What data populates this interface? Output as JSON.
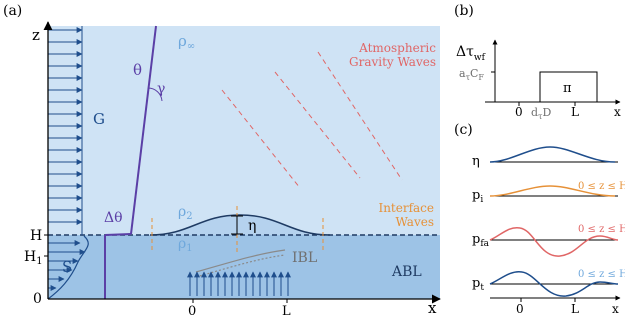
{
  "panel_a": {
    "label": "(a)",
    "axis_z": "z",
    "axis_x": "x",
    "tick_H": "H",
    "tick_H1": "H",
    "tick_H1_sub": "1",
    "tick_0": "0",
    "x_tick_0": "0",
    "x_tick_L": "L",
    "G": "G",
    "S": "S",
    "theta": "θ",
    "gamma": "γ",
    "delta_theta": "Δθ",
    "rho_inf": "ρ",
    "rho_inf_sub": "∞",
    "rho2": "ρ",
    "rho2_sub": "2",
    "rho1": "ρ",
    "rho1_sub": "1",
    "eta": "η",
    "IBL": "IBL",
    "ABL": "ABL",
    "agw_line1": "Atmospheric",
    "agw_line2": "Gravity Waves",
    "iw_line1": "Interface",
    "iw_line2": "Waves"
  },
  "panel_b": {
    "label": "(b)",
    "ylabel_main": "Δτ",
    "ylabel_sub": "wf",
    "level_a": "a",
    "level_a_sub": "τ",
    "level_C": "C",
    "level_C_sub": "F",
    "tick_0": "0",
    "tick_d": "d",
    "tick_d_sub": "τ",
    "tick_D": "D",
    "tick_L": "L",
    "axis_x": "x",
    "pi": "π"
  },
  "panel_c": {
    "label": "(c)",
    "rows": [
      {
        "label": "η",
        "sub": "",
        "note": ""
      },
      {
        "label": "p",
        "sub": "i",
        "note": "0 ≤ z ≤ H"
      },
      {
        "label": "p",
        "sub": "fa",
        "note": "0 ≤ z ≤ H"
      },
      {
        "label": "p",
        "sub": "t",
        "note": "0 ≤ z ≤ H"
      }
    ],
    "tick_0": "0",
    "tick_L": "L",
    "axis_x": "x"
  },
  "colors": {
    "upper_sky": "#cfe3f5",
    "abl": "#9dc3e6",
    "blue_dark": "#1f4e8c",
    "purple": "#5b3fa6",
    "wave_red": "#e06666",
    "interface_orange": "#e69138",
    "gray_text": "#707070",
    "light_blue_text": "#6fa8dc"
  }
}
